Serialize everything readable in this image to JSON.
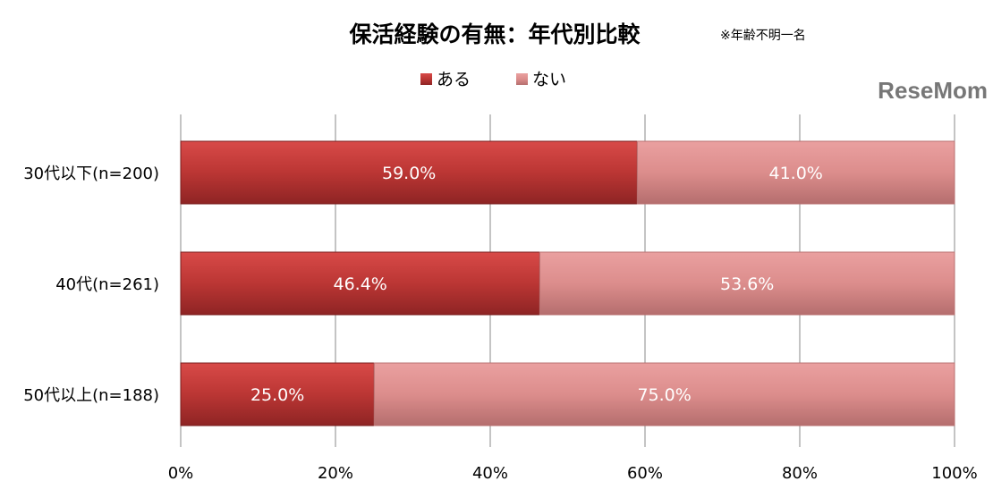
{
  "chart_data": {
    "type": "bar",
    "orientation": "horizontal",
    "stacked": "percent",
    "title": "保活経験の有無：年代別比較",
    "note": "※年齢不明一名",
    "categories": [
      "30代以下(n=200)",
      "40代(n=261)",
      "50代以上(n=188)"
    ],
    "series": [
      {
        "name": "ある",
        "values": [
          59.0,
          46.4,
          25.0
        ],
        "color": "#b83232"
      },
      {
        "name": "ない",
        "values": [
          41.0,
          53.6,
          75.0
        ],
        "color": "#d98585"
      }
    ],
    "data_labels": [
      [
        "59.0%",
        "46.4%",
        "25.0%"
      ],
      [
        "41.0%",
        "53.6%",
        "75.0%"
      ]
    ],
    "xlim": [
      0,
      100
    ],
    "x_ticks": [
      "0%",
      "20%",
      "40%",
      "60%",
      "80%",
      "100%"
    ],
    "grid": true,
    "legend_position": "top"
  },
  "watermark": "ReseMom"
}
